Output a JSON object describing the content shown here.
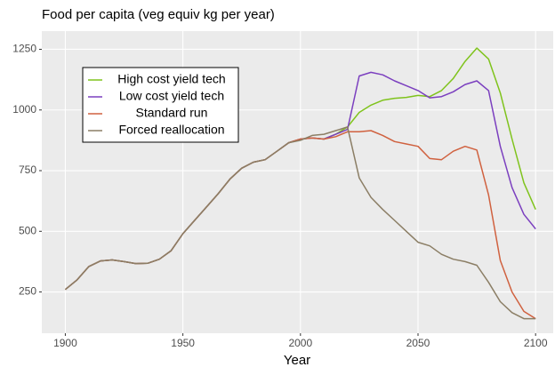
{
  "chart_data": {
    "type": "line",
    "title": "Food per capita (veg equiv kg per year)",
    "x_label": "Year",
    "x": [
      1900,
      1905,
      1910,
      1915,
      1920,
      1925,
      1930,
      1935,
      1940,
      1945,
      1950,
      1955,
      1960,
      1965,
      1970,
      1975,
      1980,
      1985,
      1990,
      1995,
      2000,
      2005,
      2010,
      2015,
      2020,
      2025,
      2030,
      2035,
      2040,
      2045,
      2050,
      2055,
      2060,
      2065,
      2070,
      2075,
      2080,
      2085,
      2090,
      2095,
      2100
    ],
    "series": [
      {
        "name": "High cost yield tech",
        "color": "#7fc31c",
        "values": [
          260,
          300,
          355,
          378,
          382,
          375,
          367,
          368,
          385,
          420,
          490,
          545,
          600,
          655,
          715,
          760,
          785,
          795,
          830,
          865,
          880,
          885,
          880,
          900,
          930,
          990,
          1020,
          1040,
          1048,
          1052,
          1060,
          1055,
          1080,
          1130,
          1200,
          1255,
          1210,
          1070,
          880,
          700,
          590
        ]
      },
      {
        "name": "Low cost yield tech",
        "color": "#7b3fbf",
        "values": [
          260,
          300,
          355,
          378,
          382,
          375,
          367,
          368,
          385,
          420,
          490,
          545,
          600,
          655,
          715,
          760,
          785,
          795,
          830,
          865,
          880,
          885,
          880,
          900,
          920,
          1140,
          1155,
          1145,
          1120,
          1100,
          1080,
          1050,
          1055,
          1075,
          1105,
          1120,
          1080,
          850,
          680,
          570,
          510
        ]
      },
      {
        "name": "Standard run",
        "color": "#d0613f",
        "values": [
          260,
          300,
          355,
          378,
          382,
          375,
          367,
          368,
          385,
          420,
          490,
          545,
          600,
          655,
          715,
          760,
          785,
          795,
          830,
          865,
          880,
          885,
          880,
          890,
          910,
          910,
          915,
          895,
          870,
          860,
          850,
          800,
          795,
          830,
          850,
          835,
          650,
          380,
          250,
          170,
          140
        ]
      },
      {
        "name": "Forced reallocation",
        "color": "#8b7e65",
        "values": [
          260,
          300,
          355,
          378,
          382,
          375,
          367,
          368,
          385,
          420,
          490,
          545,
          600,
          655,
          715,
          760,
          785,
          795,
          830,
          865,
          875,
          895,
          900,
          915,
          930,
          720,
          640,
          590,
          545,
          500,
          455,
          440,
          405,
          385,
          375,
          360,
          290,
          210,
          165,
          140,
          140
        ]
      }
    ],
    "xlim": [
      1890,
      2107.5
    ],
    "xticks": [
      1900,
      1950,
      2000,
      2050,
      2100
    ],
    "ylim": [
      80,
      1325
    ],
    "yticks": [
      250,
      500,
      750,
      1000,
      1250
    ],
    "grid": true,
    "legend": "top-left"
  }
}
